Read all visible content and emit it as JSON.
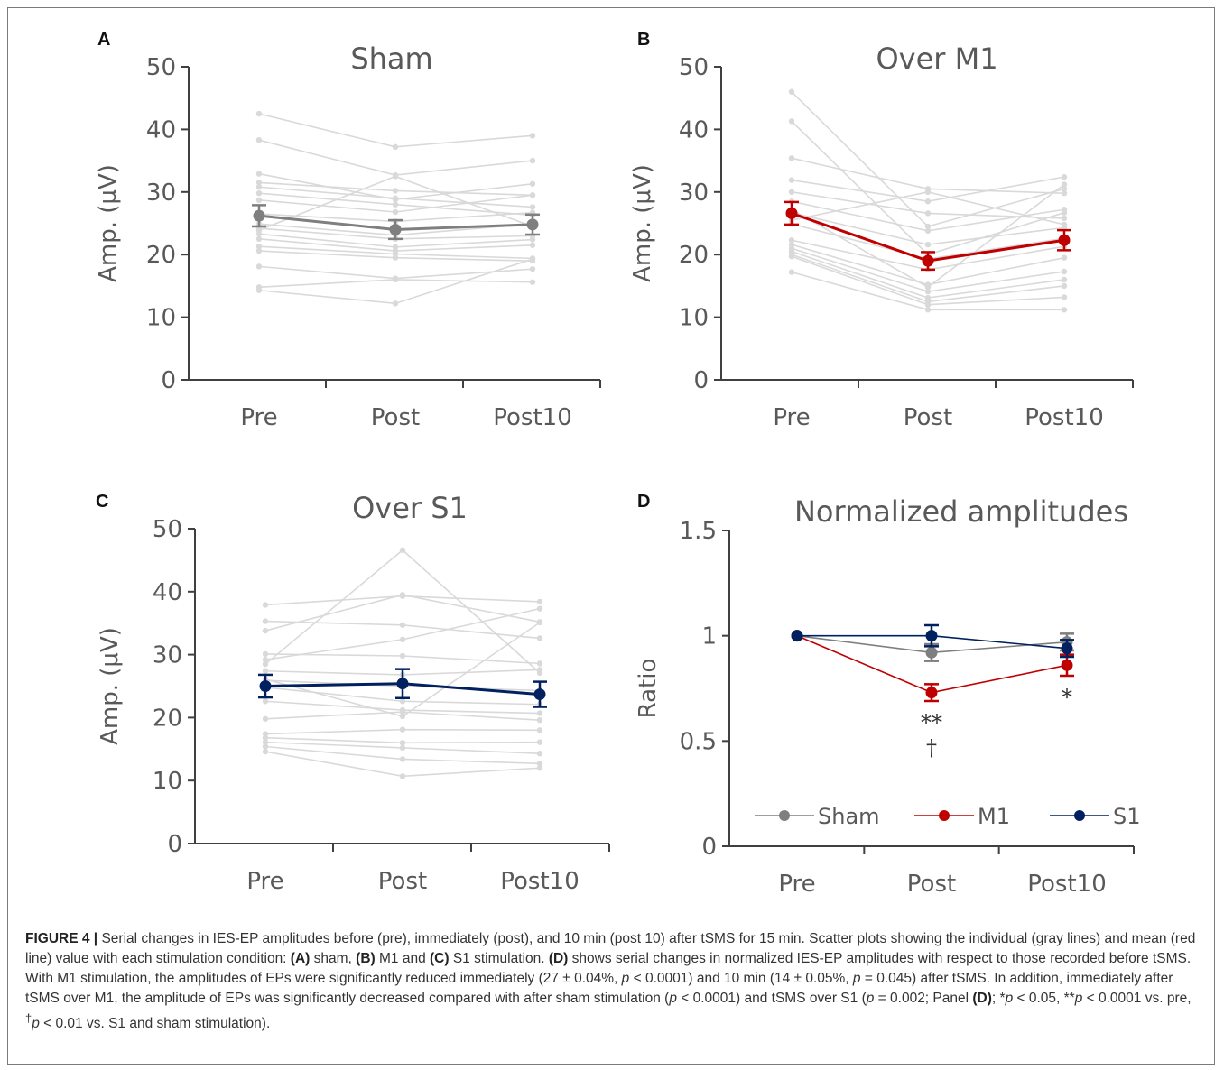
{
  "caption": {
    "label": "FIGURE 4 |",
    "segments": [
      {
        "t": " Serial changes in IES-EP amplitudes before (pre), immediately (post), and 10 min (post 10) after tSMS for 15 min. Scatter plots showing the individual (gray lines) and mean (red line) value with each stimulation condition: "
      },
      {
        "t": "(A)",
        "b": true
      },
      {
        "t": " sham, "
      },
      {
        "t": "(B)",
        "b": true
      },
      {
        "t": " M1 and "
      },
      {
        "t": "(C)",
        "b": true
      },
      {
        "t": " S1 stimulation. "
      },
      {
        "t": "(D)",
        "b": true
      },
      {
        "t": " shows serial changes in normalized IES-EP amplitudes with respect to those recorded before tSMS. With M1 stimulation, the amplitudes of EPs were significantly reduced immediately (27 ± 0.04%, "
      },
      {
        "t": "p",
        "i": true
      },
      {
        "t": " < 0.0001) and 10 min (14 ± 0.05%, "
      },
      {
        "t": "p",
        "i": true
      },
      {
        "t": " = 0.045) after tSMS. In addition, immediately after tSMS over M1, the amplitude of EPs was significantly decreased compared with after sham stimulation ("
      },
      {
        "t": "p",
        "i": true
      },
      {
        "t": " < 0.0001) and tSMS over S1 ("
      },
      {
        "t": "p",
        "i": true
      },
      {
        "t": " = 0.002; Panel "
      },
      {
        "t": "(D)",
        "b": true
      },
      {
        "t": "; *"
      },
      {
        "t": "p",
        "i": true
      },
      {
        "t": " < 0.05, **"
      },
      {
        "t": "p",
        "i": true
      },
      {
        "t": " < 0.0001 vs. pre, "
      },
      {
        "t": "†",
        "sup": true
      },
      {
        "t": "p",
        "i": true
      },
      {
        "t": " < 0.01 vs. S1 and sham stimulation)."
      }
    ]
  },
  "chart_data": [
    {
      "panel": "A",
      "type": "line",
      "title": "Sham",
      "ylabel": "Amp. (μV)",
      "categories": [
        "Pre",
        "Post",
        "Post10"
      ],
      "ylim": [
        0,
        50
      ],
      "yticks": [
        0,
        10,
        20,
        30,
        40,
        50
      ],
      "individual_color": "#d9d9d9",
      "individual": [
        [
          42.5,
          37.2,
          39.0
        ],
        [
          38.3,
          32.7,
          35.0
        ],
        [
          32.9,
          28.8,
          31.3
        ],
        [
          31.5,
          30.2,
          29.5
        ],
        [
          30.8,
          29.0,
          27.6
        ],
        [
          29.8,
          28.0,
          26.3
        ],
        [
          28.7,
          26.8,
          29.5
        ],
        [
          26.5,
          25.3,
          26.7
        ],
        [
          24.9,
          23.1,
          24.9
        ],
        [
          24.2,
          22.5,
          23.0
        ],
        [
          23.3,
          21.2,
          22.4
        ],
        [
          22.5,
          20.6,
          21.5
        ],
        [
          21.3,
          20.1,
          19.4
        ],
        [
          20.6,
          19.5,
          19.0
        ],
        [
          18.1,
          16.2,
          17.7
        ],
        [
          14.8,
          16.0,
          15.6
        ],
        [
          14.3,
          12.2,
          19.3
        ],
        [
          23.9,
          32.5,
          24.5
        ]
      ],
      "mean": {
        "name": "Sham",
        "color": "#7f7f7f",
        "values": [
          26.2,
          24.0,
          24.8
        ],
        "err": [
          1.7,
          1.5,
          1.6
        ]
      }
    },
    {
      "panel": "B",
      "type": "line",
      "title": "Over M1",
      "ylabel": "Amp. (μV)",
      "categories": [
        "Pre",
        "Post",
        "Post10"
      ],
      "ylim": [
        0,
        50
      ],
      "yticks": [
        0,
        10,
        20,
        30,
        40,
        50
      ],
      "individual_color": "#d9d9d9",
      "individual": [
        [
          46.0,
          24.5,
          30.5
        ],
        [
          41.3,
          20.0,
          26.7
        ],
        [
          35.4,
          30.5,
          29.8
        ],
        [
          31.9,
          28.5,
          32.4
        ],
        [
          30.0,
          26.6,
          25.8
        ],
        [
          28.5,
          23.8,
          27.2
        ],
        [
          26.7,
          21.6,
          24.3
        ],
        [
          24.9,
          19.3,
          22.6
        ],
        [
          22.3,
          17.6,
          21.3
        ],
        [
          21.6,
          15.2,
          19.5
        ],
        [
          21.0,
          14.1,
          17.3
        ],
        [
          20.5,
          13.1,
          16.0
        ],
        [
          20.0,
          12.5,
          15.0
        ],
        [
          19.7,
          12.0,
          13.2
        ],
        [
          17.2,
          11.2,
          11.2
        ],
        [
          25.5,
          30.0,
          24.8
        ],
        [
          27.2,
          14.8,
          31.2
        ]
      ],
      "mean": {
        "name": "M1",
        "color": "#c00000",
        "values": [
          26.6,
          19.0,
          22.3
        ],
        "err": [
          1.8,
          1.4,
          1.6
        ]
      }
    },
    {
      "panel": "C",
      "type": "line",
      "title": "Over S1",
      "ylabel": "Amp. (μV)",
      "categories": [
        "Pre",
        "Post",
        "Post10"
      ],
      "ylim": [
        0,
        50
      ],
      "yticks": [
        0,
        10,
        20,
        30,
        40,
        50
      ],
      "individual_color": "#d9d9d9",
      "individual": [
        [
          37.9,
          39.3,
          38.4
        ],
        [
          35.3,
          34.7,
          32.6
        ],
        [
          33.8,
          39.5,
          35.2
        ],
        [
          30.1,
          29.8,
          28.6
        ],
        [
          29.2,
          32.4,
          37.3
        ],
        [
          27.4,
          26.8,
          27.6
        ],
        [
          25.9,
          25.0,
          24.3
        ],
        [
          24.8,
          22.6,
          22.1
        ],
        [
          22.6,
          21.2,
          20.7
        ],
        [
          19.8,
          20.9,
          19.6
        ],
        [
          17.4,
          18.1,
          18.0
        ],
        [
          16.8,
          16.0,
          16.1
        ],
        [
          16.1,
          15.2,
          14.3
        ],
        [
          15.4,
          13.4,
          12.7
        ],
        [
          14.6,
          10.7,
          12.0
        ],
        [
          28.5,
          46.6,
          27.1
        ],
        [
          26.1,
          20.2,
          35.1
        ]
      ],
      "mean": {
        "name": "S1",
        "color": "#002060",
        "values": [
          25.0,
          25.4,
          23.7
        ],
        "err": [
          1.8,
          2.3,
          2.0
        ]
      }
    },
    {
      "panel": "D",
      "type": "line",
      "title": "Normalized amplitudes",
      "ylabel": "Ratio",
      "categories": [
        "Pre",
        "Post",
        "Post10"
      ],
      "ylim": [
        0,
        1.5
      ],
      "yticks": [
        0,
        0.5,
        1,
        1.5
      ],
      "ytick_labels": [
        "0",
        "0.5",
        "1",
        "1.5"
      ],
      "legend_position": "bottom",
      "series": [
        {
          "name": "Sham",
          "color": "#7f7f7f",
          "values": [
            1.0,
            0.92,
            0.97
          ],
          "err": [
            0,
            0.04,
            0.04
          ]
        },
        {
          "name": "M1",
          "color": "#c00000",
          "values": [
            1.0,
            0.73,
            0.86
          ],
          "err": [
            0,
            0.04,
            0.05
          ]
        },
        {
          "name": "S1",
          "color": "#002060",
          "values": [
            1.0,
            1.0,
            0.94
          ],
          "err": [
            0,
            0.05,
            0.04
          ]
        }
      ],
      "annotations": [
        {
          "category": "Post",
          "text": "**"
        },
        {
          "category": "Post",
          "text": "†"
        },
        {
          "category": "Post10",
          "text": "*"
        }
      ]
    }
  ]
}
